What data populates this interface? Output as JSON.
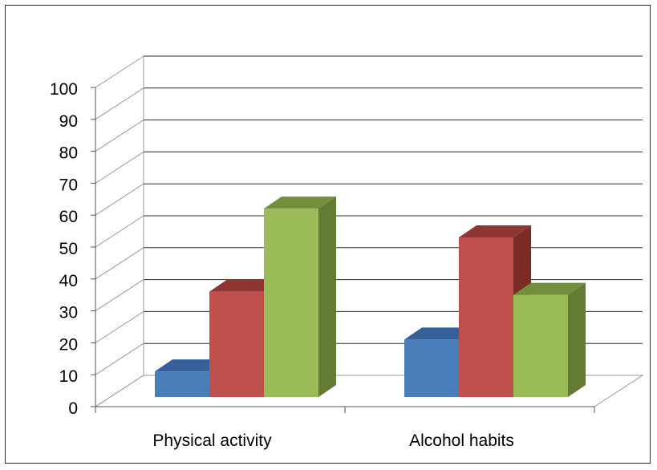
{
  "chart_data": {
    "type": "bar",
    "style": "3d-clustered-column",
    "title": "",
    "xlabel": "",
    "ylabel": "",
    "categories": [
      "Physical activity",
      "Alcohol habits"
    ],
    "series": [
      {
        "values": [
          8,
          18
        ]
      },
      {
        "values": [
          33,
          50
        ]
      },
      {
        "values": [
          59,
          32
        ]
      }
    ],
    "series_colors": [
      {
        "front": "#4a7ebb",
        "top": "#35609a",
        "side": "#2c5282"
      },
      {
        "front": "#c0504d",
        "top": "#8f3532",
        "side": "#7b2c29"
      },
      {
        "front": "#9bbb59",
        "top": "#738f3c",
        "side": "#637b33"
      }
    ],
    "ylim": [
      0,
      100
    ],
    "yticks": [
      "0",
      "10",
      "20",
      "30",
      "40",
      "50",
      "60",
      "70",
      "80",
      "90",
      "100"
    ],
    "grid": true,
    "legend": "none"
  }
}
